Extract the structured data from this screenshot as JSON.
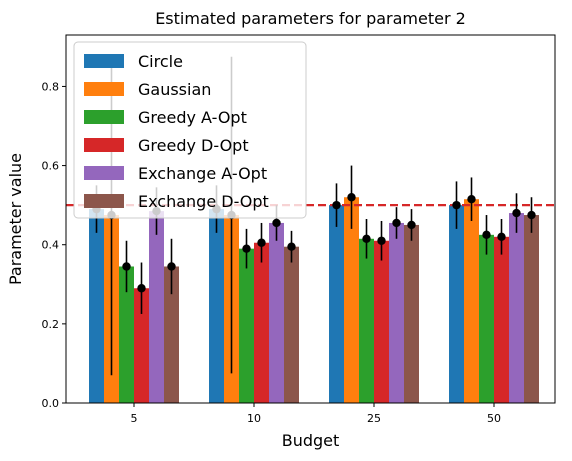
{
  "chart_data": {
    "type": "bar",
    "title": "Estimated parameters for parameter 2",
    "xlabel": "Budget",
    "ylabel": "Parameter value",
    "categories": [
      "5",
      "10",
      "25",
      "50"
    ],
    "ylim": [
      0,
      0.93
    ],
    "yticks": [
      "0.0",
      "0.2",
      "0.4",
      "0.6",
      "0.8"
    ],
    "reference_line": {
      "value": 0.5,
      "color": "#d62728",
      "style": "dashed"
    },
    "legend_position": "upper-left",
    "grid": false,
    "series": [
      {
        "name": "Circle",
        "color": "#1f77b4",
        "values": [
          0.49,
          0.49,
          0.5,
          0.5
        ],
        "errors": [
          0.06,
          0.06,
          0.055,
          0.06
        ]
      },
      {
        "name": "Gaussian",
        "color": "#ff7f0e",
        "values": [
          0.475,
          0.475,
          0.52,
          0.515
        ],
        "errors": [
          0.405,
          0.4,
          0.08,
          0.055
        ]
      },
      {
        "name": "Greedy A-Opt",
        "color": "#2ca02c",
        "values": [
          0.345,
          0.39,
          0.415,
          0.425
        ],
        "errors": [
          0.065,
          0.05,
          0.05,
          0.05
        ]
      },
      {
        "name": "Greedy D-Opt",
        "color": "#d62728",
        "values": [
          0.29,
          0.405,
          0.41,
          0.42
        ],
        "errors": [
          0.065,
          0.05,
          0.05,
          0.045
        ]
      },
      {
        "name": "Exchange A-Opt",
        "color": "#9467bd",
        "values": [
          0.485,
          0.455,
          0.455,
          0.48
        ],
        "errors": [
          0.06,
          0.045,
          0.04,
          0.05
        ]
      },
      {
        "name": "Exchange D-Opt",
        "color": "#8c564b",
        "values": [
          0.345,
          0.395,
          0.45,
          0.475
        ],
        "errors": [
          0.07,
          0.04,
          0.04,
          0.045
        ]
      }
    ]
  }
}
